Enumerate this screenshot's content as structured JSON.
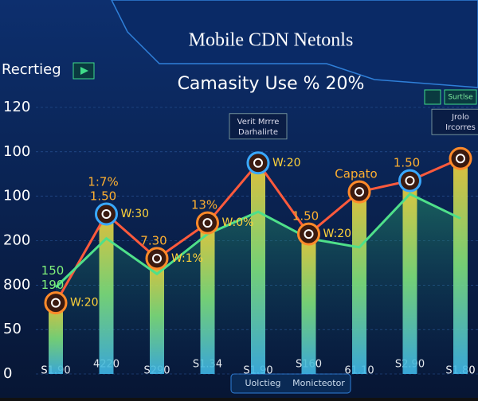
{
  "chart_data": {
    "type": "line",
    "title": "Mobile CDN Netonls",
    "section_label": "Recrtieg",
    "subtitle": "Camasity Use % 20%",
    "button": "Surtlse",
    "footer": [
      "Uolctieg",
      "Monicteotor"
    ],
    "y_axis_labels": [
      "120",
      "100",
      "100",
      "200",
      "800",
      "50",
      "0"
    ],
    "ylim": [
      0,
      120
    ],
    "categories": [
      "S1.90",
      "4220",
      "S290",
      "S1.34",
      "S1.90",
      "S160",
      "61.10",
      "S2.90",
      "S1.80"
    ],
    "series": [
      {
        "color": "#ff5a3c",
        "values": [
          32,
          72,
          52,
          68,
          95,
          63,
          82,
          87,
          97
        ]
      },
      {
        "color": "#4fe08a",
        "values": [
          39,
          61,
          45,
          63,
          73,
          61,
          57,
          81,
          70
        ]
      }
    ],
    "point_labels": [
      [
        "190",
        "150",
        "W:20"
      ],
      [
        "1.50",
        "1:7%",
        "W:30"
      ],
      [
        "7.30",
        "W:1%"
      ],
      [
        "13%",
        "W:0%"
      ],
      [
        "W:20"
      ],
      [
        "1.50",
        "W:20"
      ],
      [
        "Capato"
      ],
      [
        "1.50"
      ],
      []
    ],
    "callouts": [
      null,
      null,
      null,
      null,
      [
        "Verit Mrrre",
        "Darhalirte"
      ],
      null,
      null,
      null,
      [
        "Jrolo",
        "Ircorres"
      ]
    ]
  }
}
